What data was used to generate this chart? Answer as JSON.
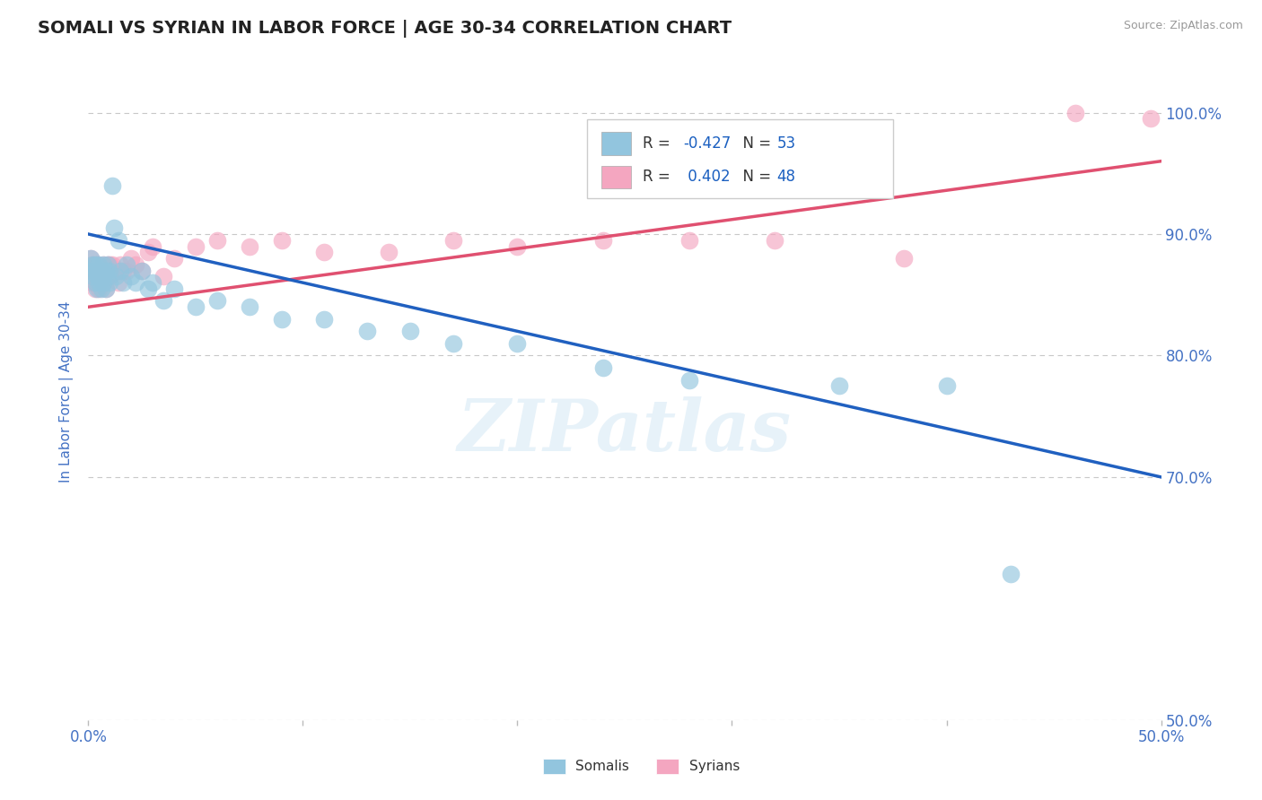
{
  "title": "SOMALI VS SYRIAN IN LABOR FORCE | AGE 30-34 CORRELATION CHART",
  "source_text": "Source: ZipAtlas.com",
  "ylabel": "In Labor Force | Age 30-34",
  "xlim": [
    0.0,
    0.5
  ],
  "ylim": [
    0.5,
    1.04
  ],
  "xtick_values": [
    0.0,
    0.1,
    0.2,
    0.3,
    0.4,
    0.5
  ],
  "xtick_labels": [
    "0.0%",
    "",
    "",
    "",
    "",
    "50.0%"
  ],
  "ytick_values": [
    1.0,
    0.9,
    0.8,
    0.7,
    0.5
  ],
  "ytick_labels": [
    "100.0%",
    "90.0%",
    "80.0%",
    "70.0%",
    "50.0%"
  ],
  "somali_color": "#92c5de",
  "syrian_color": "#f4a6c0",
  "somali_R": -0.427,
  "somali_N": 53,
  "syrian_R": 0.402,
  "syrian_N": 48,
  "blue_line_x": [
    0.0,
    0.5
  ],
  "blue_line_y": [
    0.9,
    0.7
  ],
  "pink_line_x": [
    0.0,
    0.5
  ],
  "pink_line_y": [
    0.84,
    0.96
  ],
  "watermark": "ZIPatlas",
  "background_color": "#ffffff",
  "grid_color": "#c8c8c8",
  "title_color": "#222222",
  "title_fontsize": 14,
  "axis_label_color": "#4472c4",
  "tick_label_color": "#4472c4",
  "somali_scatter_x": [
    0.001,
    0.001,
    0.002,
    0.002,
    0.003,
    0.003,
    0.003,
    0.004,
    0.004,
    0.004,
    0.005,
    0.005,
    0.005,
    0.006,
    0.006,
    0.006,
    0.007,
    0.007,
    0.007,
    0.008,
    0.008,
    0.009,
    0.009,
    0.01,
    0.01,
    0.011,
    0.012,
    0.013,
    0.014,
    0.015,
    0.016,
    0.018,
    0.02,
    0.022,
    0.025,
    0.028,
    0.03,
    0.035,
    0.04,
    0.05,
    0.06,
    0.075,
    0.09,
    0.11,
    0.13,
    0.15,
    0.17,
    0.2,
    0.24,
    0.28,
    0.35,
    0.4,
    0.43
  ],
  "somali_scatter_y": [
    0.88,
    0.87,
    0.875,
    0.865,
    0.87,
    0.86,
    0.875,
    0.865,
    0.855,
    0.87,
    0.86,
    0.875,
    0.865,
    0.87,
    0.855,
    0.865,
    0.86,
    0.875,
    0.865,
    0.87,
    0.855,
    0.865,
    0.875,
    0.87,
    0.86,
    0.94,
    0.905,
    0.865,
    0.895,
    0.87,
    0.86,
    0.875,
    0.865,
    0.86,
    0.87,
    0.855,
    0.86,
    0.845,
    0.855,
    0.84,
    0.845,
    0.84,
    0.83,
    0.83,
    0.82,
    0.82,
    0.81,
    0.81,
    0.79,
    0.78,
    0.775,
    0.775,
    0.62
  ],
  "syrian_scatter_x": [
    0.001,
    0.001,
    0.002,
    0.002,
    0.003,
    0.003,
    0.004,
    0.004,
    0.005,
    0.005,
    0.006,
    0.006,
    0.007,
    0.007,
    0.008,
    0.008,
    0.009,
    0.009,
    0.01,
    0.01,
    0.011,
    0.012,
    0.013,
    0.014,
    0.015,
    0.016,
    0.018,
    0.02,
    0.022,
    0.025,
    0.028,
    0.03,
    0.035,
    0.04,
    0.05,
    0.06,
    0.075,
    0.09,
    0.11,
    0.14,
    0.17,
    0.2,
    0.24,
    0.28,
    0.32,
    0.38,
    0.46,
    0.495
  ],
  "syrian_scatter_y": [
    0.88,
    0.87,
    0.875,
    0.86,
    0.87,
    0.855,
    0.875,
    0.86,
    0.87,
    0.855,
    0.87,
    0.86,
    0.875,
    0.86,
    0.87,
    0.855,
    0.865,
    0.875,
    0.865,
    0.875,
    0.875,
    0.87,
    0.87,
    0.86,
    0.875,
    0.87,
    0.87,
    0.88,
    0.875,
    0.87,
    0.885,
    0.89,
    0.865,
    0.88,
    0.89,
    0.895,
    0.89,
    0.895,
    0.885,
    0.885,
    0.895,
    0.89,
    0.895,
    0.895,
    0.895,
    0.88,
    1.0,
    0.995
  ],
  "legend_r_color": "#1a5fc0",
  "legend_n_color": "#1a5fc0"
}
